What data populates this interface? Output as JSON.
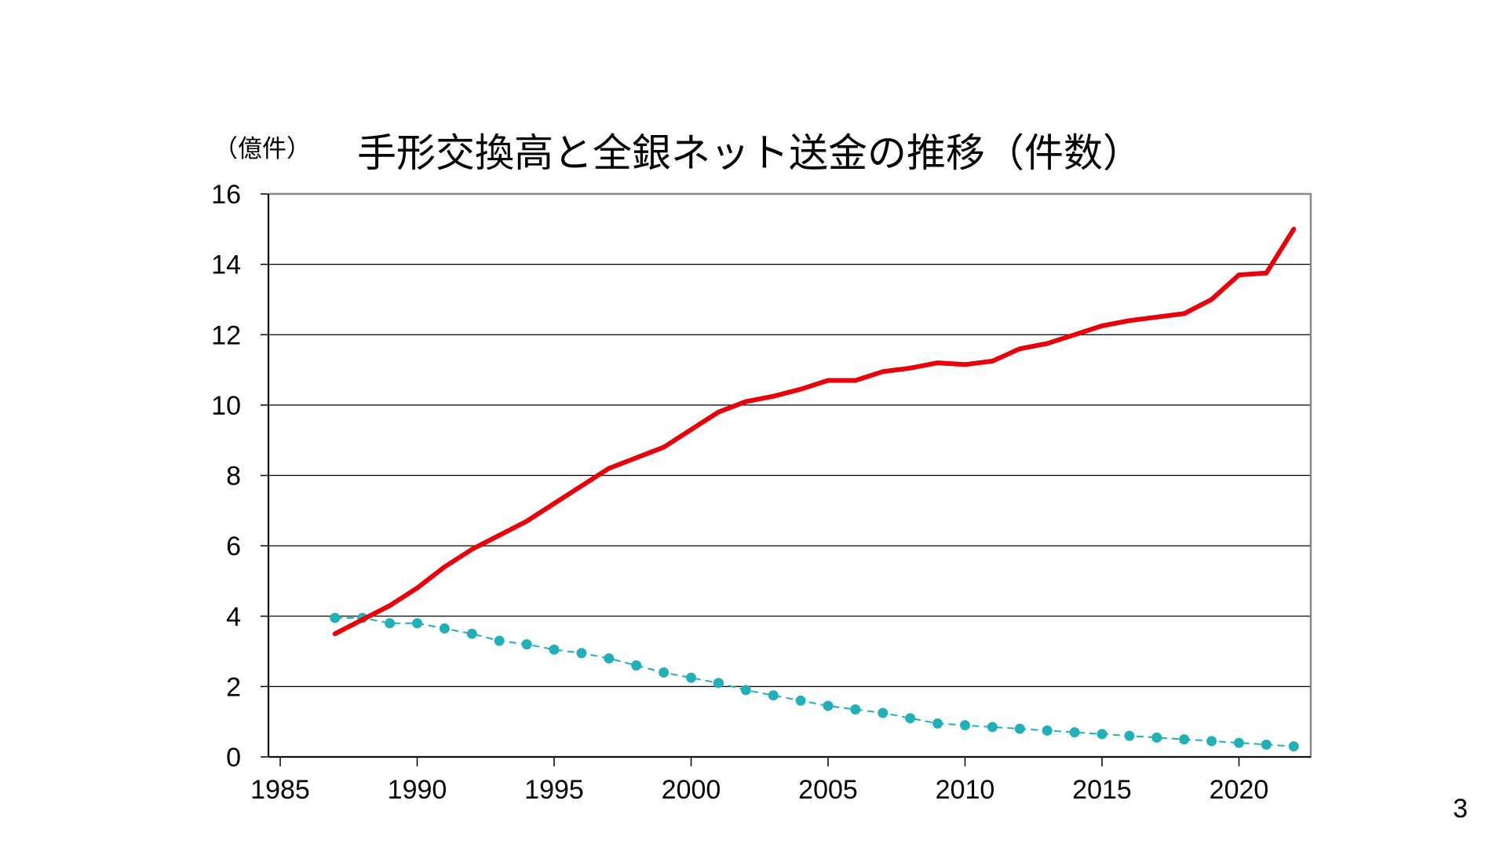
{
  "title": "手形交換高と全銀ネット送金の推移（件数）",
  "y_unit_label": "（億件）",
  "page_number": "3",
  "colors": {
    "series_red": "#e8000b",
    "series_teal": "#23afb8",
    "grid": "#000000",
    "frame": "#888888"
  },
  "chart_data": {
    "type": "line",
    "title": "手形交換高と全銀ネット送金の推移（件数）",
    "ylabel": "（億件）",
    "xlabel": "",
    "xlim": [
      1985,
      2023
    ],
    "ylim": [
      0,
      16
    ],
    "x_ticks": [
      1985,
      1990,
      1995,
      2000,
      2005,
      2010,
      2015,
      2020
    ],
    "y_ticks": [
      0,
      2,
      4,
      6,
      8,
      10,
      12,
      14,
      16
    ],
    "grid": "horizontal",
    "legend": "none",
    "x": [
      1987,
      1988,
      1989,
      1990,
      1991,
      1992,
      1993,
      1994,
      1995,
      1996,
      1997,
      1998,
      1999,
      2000,
      2001,
      2002,
      2003,
      2004,
      2005,
      2006,
      2007,
      2008,
      2009,
      2010,
      2011,
      2012,
      2013,
      2014,
      2015,
      2016,
      2017,
      2018,
      2019,
      2020,
      2021,
      2022
    ],
    "series": [
      {
        "style": "solid-red",
        "values": [
          3.5,
          3.9,
          4.3,
          4.8,
          5.4,
          5.9,
          6.3,
          6.7,
          7.2,
          7.7,
          8.2,
          8.5,
          8.8,
          9.3,
          9.8,
          10.1,
          10.25,
          10.45,
          10.7,
          10.7,
          10.95,
          11.05,
          11.2,
          11.15,
          11.25,
          11.6,
          11.75,
          12.0,
          12.25,
          12.4,
          12.5,
          12.6,
          13.0,
          13.7,
          13.75,
          15.0
        ]
      },
      {
        "style": "dashed-teal-dots",
        "values": [
          3.95,
          3.95,
          3.8,
          3.8,
          3.65,
          3.5,
          3.3,
          3.2,
          3.05,
          2.95,
          2.8,
          2.6,
          2.4,
          2.25,
          2.1,
          1.9,
          1.75,
          1.6,
          1.45,
          1.35,
          1.25,
          1.1,
          0.95,
          0.9,
          0.85,
          0.8,
          0.75,
          0.7,
          0.65,
          0.6,
          0.55,
          0.5,
          0.45,
          0.4,
          0.35,
          0.3
        ]
      }
    ]
  }
}
